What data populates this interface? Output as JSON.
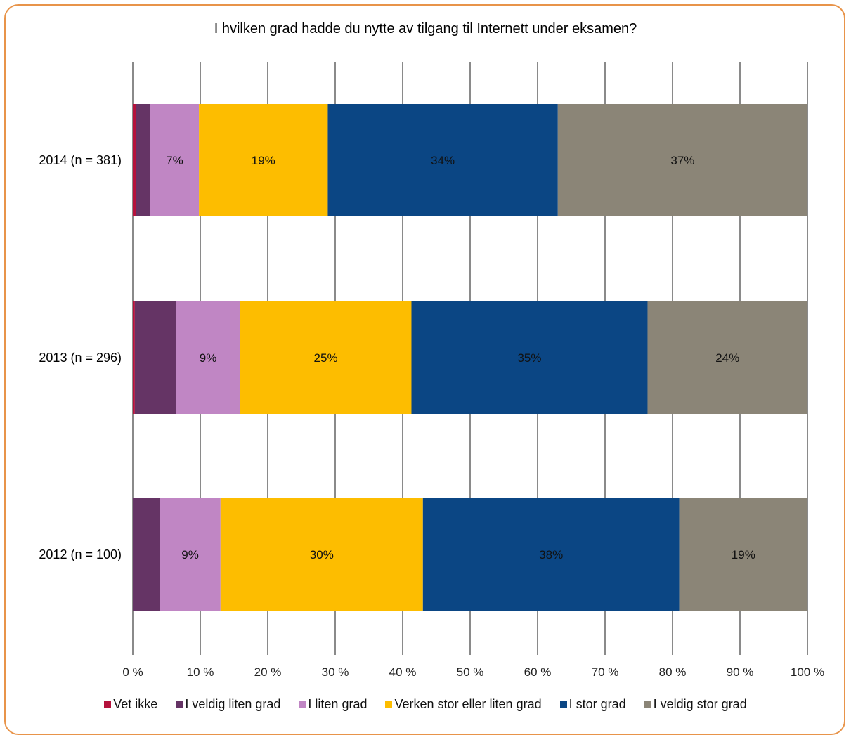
{
  "chart_data": {
    "type": "bar",
    "orientation": "horizontal",
    "stacked": true,
    "title": "I hvilken grad hadde du nytte av tilgang til Internett under eksamen?",
    "categories": [
      "2014 (n = 381)",
      "2013 (n = 296)",
      "2012 (n = 100)"
    ],
    "xlim": [
      0,
      100
    ],
    "x_ticks": [
      "0 %",
      "10 %",
      "20 %",
      "30 %",
      "40 %",
      "50 %",
      "60 %",
      "70 %",
      "80 %",
      "90 %",
      "100 %"
    ],
    "grid": "vertical",
    "legend_position": "bottom",
    "series": [
      {
        "name": "Vet ikke",
        "color": "#b5123c",
        "values": [
          0.5,
          0.3,
          0
        ],
        "labels": [
          "",
          "",
          ""
        ]
      },
      {
        "name": "I veldig liten grad",
        "color": "#653465",
        "values": [
          2.1,
          6.1,
          4
        ],
        "labels": [
          "",
          "",
          ""
        ]
      },
      {
        "name": "I liten grad",
        "color": "#c086c4",
        "values": [
          7.2,
          9.5,
          9
        ],
        "labels": [
          "7%",
          "9%",
          "9%"
        ]
      },
      {
        "name": "Verken stor eller liten grad",
        "color": "#fdbd00",
        "values": [
          19.1,
          25.4,
          30
        ],
        "labels": [
          "19%",
          "25%",
          "30%"
        ]
      },
      {
        "name": "I stor grad",
        "color": "#0b4684",
        "values": [
          34.1,
          35.0,
          38
        ],
        "labels": [
          "34%",
          "35%",
          "38%"
        ]
      },
      {
        "name": "I veldig stor grad",
        "color": "#8b8577",
        "values": [
          37.0,
          23.7,
          19
        ],
        "labels": [
          "37%",
          "24%",
          "19%"
        ]
      }
    ]
  }
}
